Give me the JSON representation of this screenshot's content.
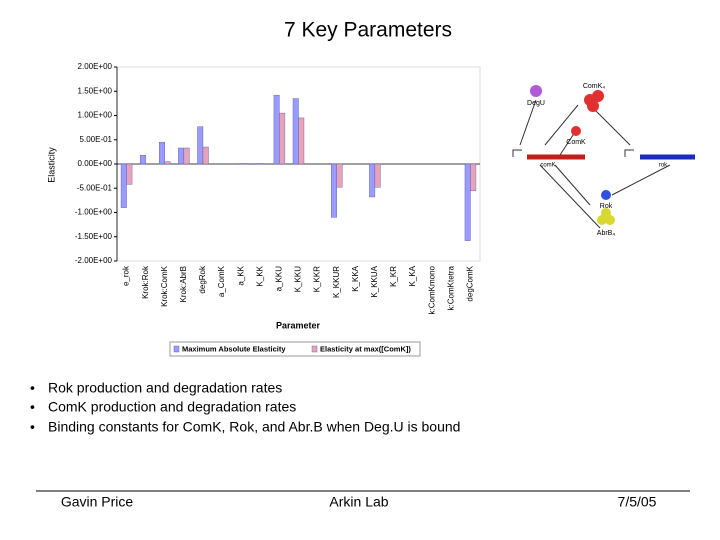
{
  "title": "7 Key Parameters",
  "chart_data": {
    "type": "bar",
    "categories": [
      "e_rok",
      "Krok:Rok",
      "Krok:ComK",
      "Krok:AbrB",
      "degRok",
      "a_ComK",
      "a_KK",
      "K_KK",
      "a_KKU",
      "K_KKU",
      "K_KKR",
      "K_KKUR",
      "K_KKA",
      "K_KKUA",
      "K_KR",
      "K_KA",
      "k:ComKmono",
      "k:ComKtetra",
      "degComK"
    ],
    "series": [
      {
        "name": "Maximum Absolute Elasticity",
        "color": "#9a9aff",
        "values": [
          -0.9,
          0.18,
          0.45,
          0.33,
          0.77,
          0,
          0.01,
          0.01,
          1.42,
          1.35,
          0,
          -1.1,
          0,
          -0.68,
          0,
          0,
          0,
          0,
          -1.58
        ]
      },
      {
        "name": "Elasticity at max([ComK])",
        "color": "#e9a3b8",
        "values": [
          -0.42,
          0.0,
          0.05,
          0.33,
          0.35,
          0,
          0.01,
          0.01,
          1.05,
          0.95,
          0,
          -0.48,
          0,
          -0.48,
          0,
          0,
          0,
          0,
          -0.55
        ]
      }
    ],
    "ylim": [
      -2,
      2
    ],
    "yticks": [
      {
        "value": 2,
        "label": "2.00E+00"
      },
      {
        "value": 1.5,
        "label": "1.50E+00"
      },
      {
        "value": 1,
        "label": "1.00E+00"
      },
      {
        "value": 0.5,
        "label": "5.00E-01"
      },
      {
        "value": 0,
        "label": "0.00E+00"
      },
      {
        "value": -0.5,
        "label": "-5.00E-01"
      },
      {
        "value": -1,
        "label": "-1.00E+00"
      },
      {
        "value": -1.5,
        "label": "-1.50E+00"
      },
      {
        "value": -2,
        "label": "-2.00E+00"
      }
    ],
    "xlabel": "Parameter",
    "ylabel": "Elasticity",
    "grid": false
  },
  "diagram": {
    "nodes": [
      "DegU",
      "ComK₄",
      "ComK",
      "comK",
      "rok",
      "Rok",
      "AbrB₄"
    ]
  },
  "bullets": [
    "Rok production and degradation rates",
    "ComK production and degradation rates",
    "Binding constants for ComK, Rok, and Abr.B when Deg.U is bound"
  ],
  "footer": {
    "left": "Gavin Price",
    "center": "Arkin Lab",
    "right": "7/5/05"
  }
}
